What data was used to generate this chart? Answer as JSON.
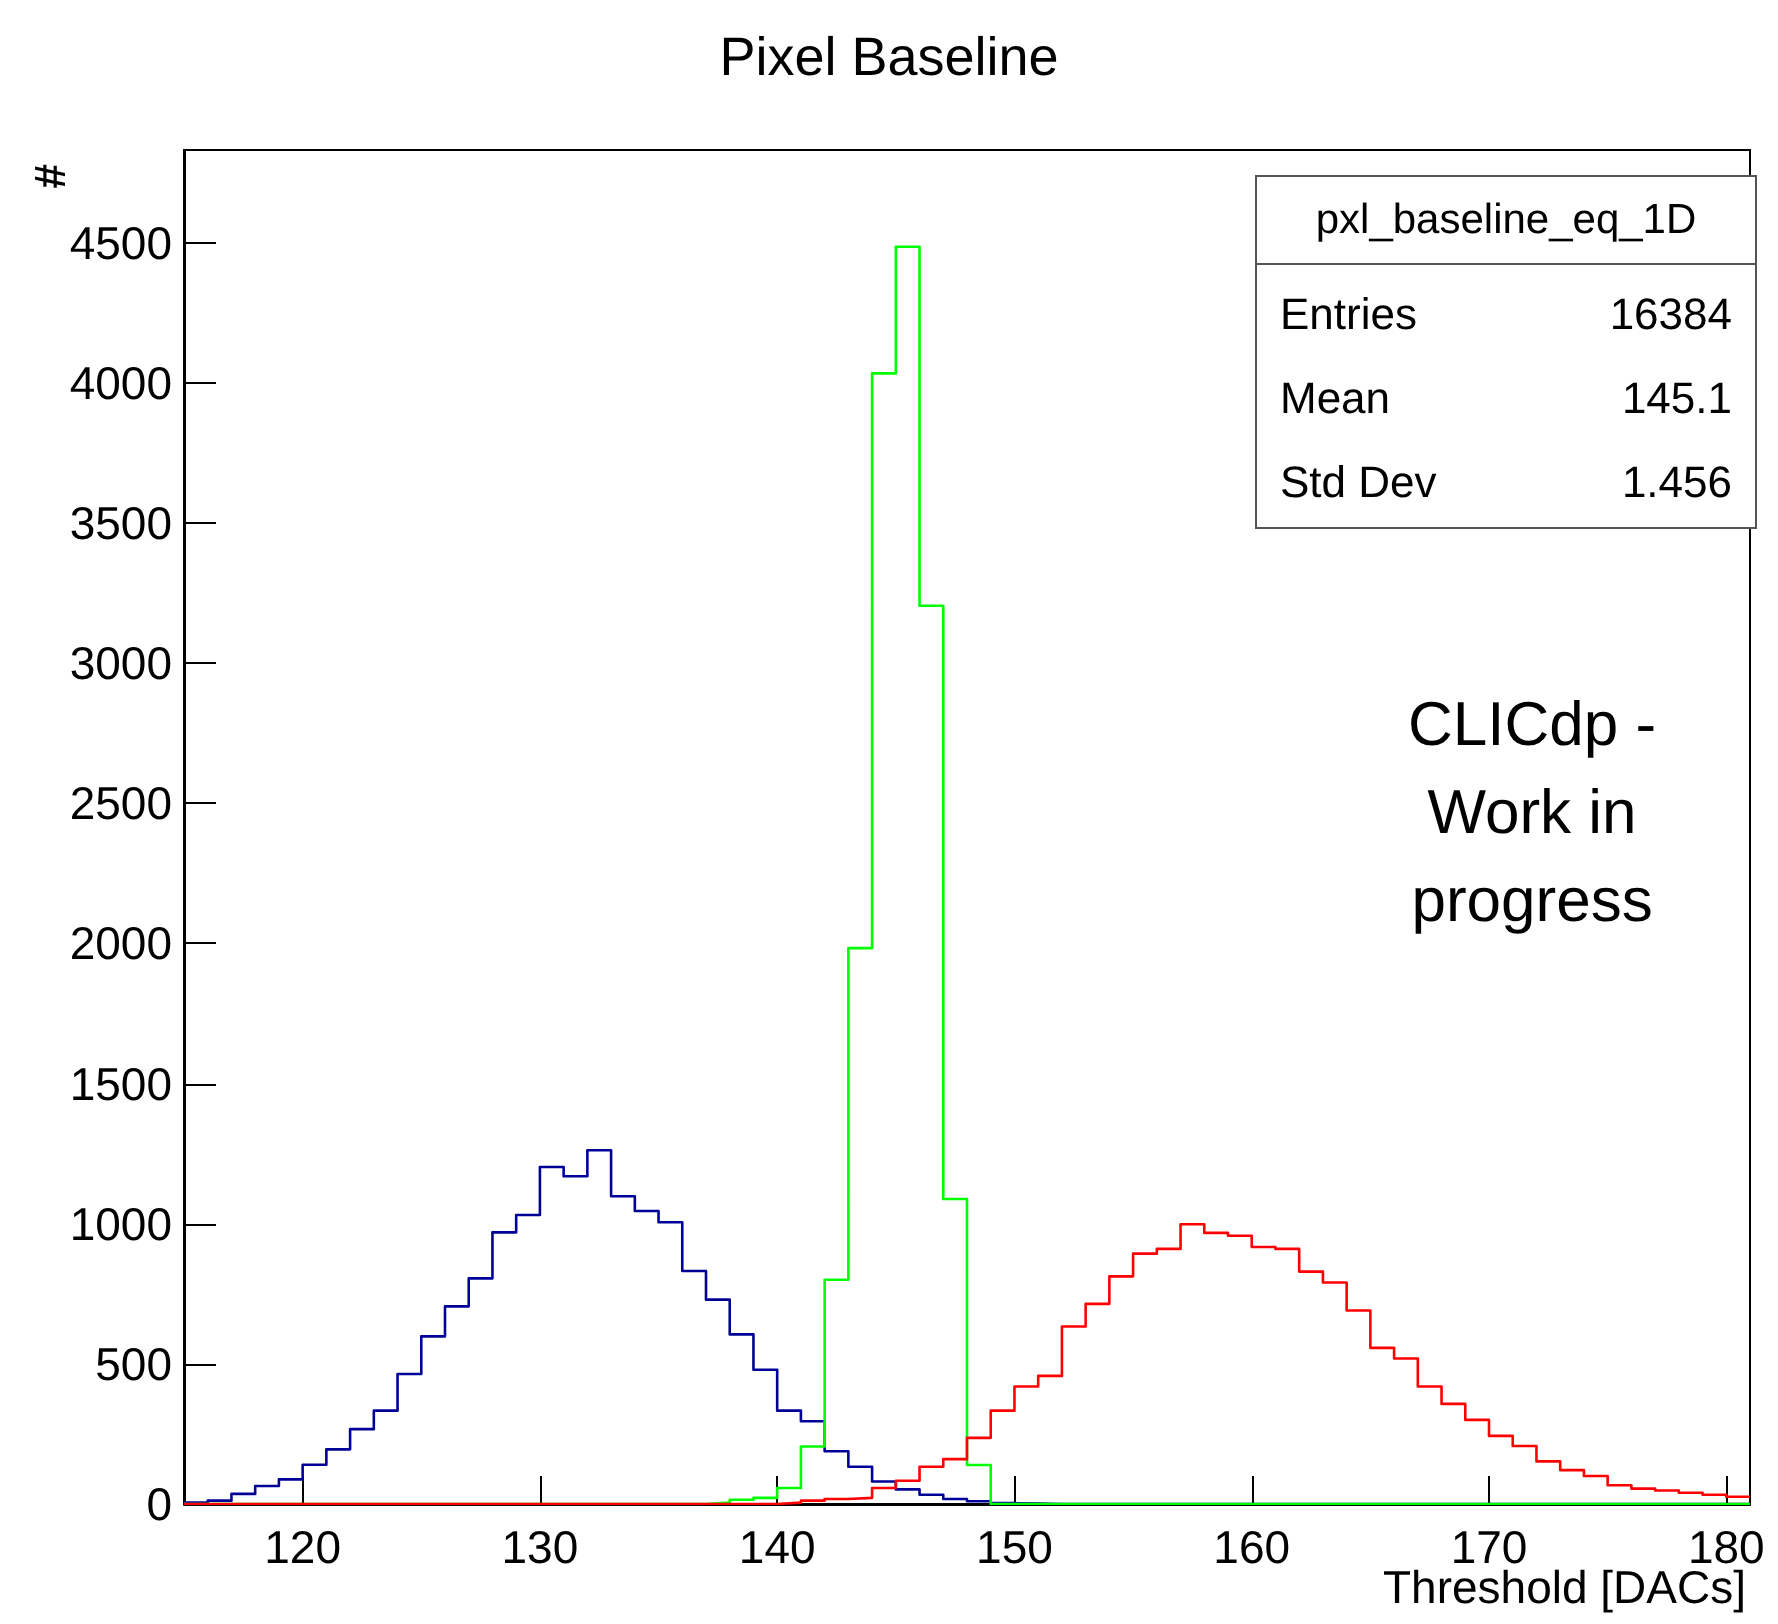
{
  "chart_data": {
    "type": "histogram",
    "title": "Pixel Baseline",
    "xlabel": "Threshold [DACs]",
    "ylabel": "#",
    "bins": [
      115,
      116,
      117,
      118,
      119,
      120,
      121,
      122,
      123,
      124,
      125,
      126,
      127,
      128,
      129,
      130,
      131,
      132,
      133,
      134,
      135,
      136,
      137,
      138,
      139,
      140,
      141,
      142,
      143,
      144,
      145,
      146,
      147,
      148,
      149,
      150,
      151,
      152,
      153,
      154,
      155,
      156,
      157,
      158,
      159,
      160,
      161,
      162,
      163,
      164,
      165,
      166,
      167,
      168,
      169,
      170,
      171,
      172,
      173,
      174,
      175,
      176,
      177,
      178,
      179,
      180,
      181
    ],
    "series": [
      {
        "color": "#000099",
        "values": [
          5,
          12,
          36,
          64,
          88,
          140,
          195,
          267,
          333,
          464,
          598,
          705,
          805,
          969,
          1031,
          1202,
          1169,
          1262,
          1098,
          1045,
          1005,
          831,
          729,
          605,
          479,
          333,
          295,
          188,
          133,
          80,
          52,
          33,
          18,
          10,
          3,
          2,
          0,
          0,
          0,
          0,
          0,
          0,
          0,
          0,
          0,
          0,
          0,
          0,
          0,
          0,
          0,
          0,
          0,
          0,
          0,
          0,
          0,
          0,
          0,
          0,
          0,
          0,
          0,
          0,
          0,
          0
        ]
      },
      {
        "color": "#00ff00",
        "values": [
          0,
          0,
          0,
          0,
          0,
          0,
          0,
          0,
          0,
          0,
          0,
          0,
          0,
          0,
          0,
          0,
          0,
          0,
          0,
          0,
          0,
          0,
          5,
          15,
          22,
          57,
          205,
          800,
          1983,
          4033,
          4485,
          3204,
          1088,
          139,
          0,
          0,
          0,
          0,
          0,
          0,
          0,
          0,
          0,
          0,
          0,
          0,
          0,
          0,
          0,
          0,
          0,
          0,
          0,
          0,
          0,
          0,
          0,
          0,
          0,
          0,
          0,
          0,
          0,
          0,
          0,
          0
        ]
      },
      {
        "color": "#ff0000",
        "values": [
          0,
          0,
          0,
          0,
          0,
          0,
          0,
          0,
          0,
          0,
          0,
          0,
          0,
          0,
          0,
          0,
          0,
          0,
          0,
          0,
          0,
          0,
          0,
          0,
          0,
          5,
          12,
          18,
          22,
          57,
          83,
          133,
          160,
          236,
          333,
          419,
          457,
          633,
          714,
          812,
          893,
          910,
          998,
          967,
          957,
          917,
          910,
          829,
          790,
          690,
          557,
          519,
          419,
          357,
          300,
          243,
          207,
          152,
          121,
          100,
          67,
          55,
          48,
          40,
          33,
          26
        ]
      }
    ],
    "xlim": [
      115,
      181
    ],
    "xticks": [
      120,
      130,
      140,
      150,
      160,
      170,
      180
    ],
    "ylim": [
      0,
      4830
    ],
    "yticks": [
      0,
      500,
      1000,
      1500,
      2000,
      2500,
      3000,
      3500,
      4000,
      4500
    ],
    "grid": false,
    "annotations": [
      "pxl_baseline_eq_1D",
      "Entries",
      "16384",
      "Mean",
      "145.1",
      "Std Dev",
      "1.456",
      "CLICdp -\nWork in\nprogress"
    ]
  }
}
